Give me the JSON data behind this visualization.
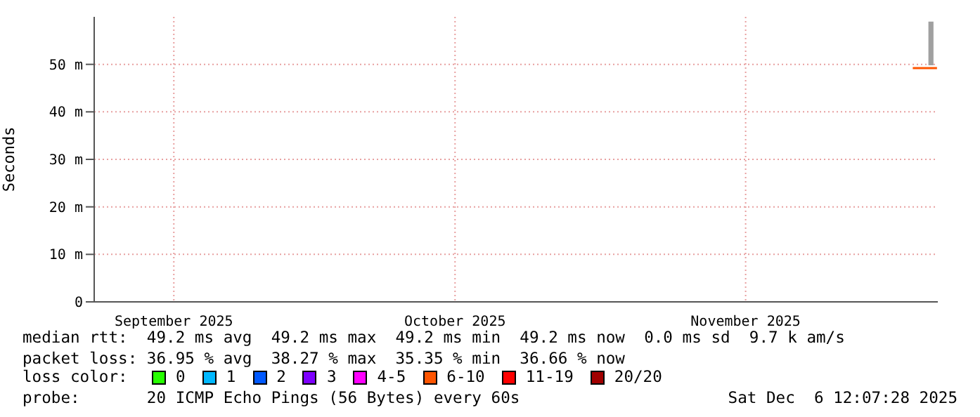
{
  "chart_data": {
    "type": "line",
    "ylabel": "Seconds",
    "xlim": [
      "2025-09-07T12:07",
      "2025-12-06T12:07"
    ],
    "xticks": [
      {
        "value": "2025-09-16",
        "label": "September 2025"
      },
      {
        "value": "2025-10-16",
        "label": "October 2025"
      },
      {
        "value": "2025-11-16",
        "label": "November 2025"
      }
    ],
    "ylim": [
      0,
      60
    ],
    "yticks": [
      {
        "value": 0,
        "label": "0"
      },
      {
        "value": 10,
        "label": "10 m"
      },
      {
        "value": 20,
        "label": "20 m"
      },
      {
        "value": 30,
        "label": "30 m"
      },
      {
        "value": 40,
        "label": "40 m"
      },
      {
        "value": 50,
        "label": "50 m"
      }
    ],
    "grid": true,
    "marker": "none",
    "series": [
      {
        "color": "#ff5500",
        "x": [
          "2025-12-03T20:00",
          "2025-12-05T12:00",
          "2025-12-06T01:00",
          "2025-12-06T10:00"
        ],
        "values": [
          49.2,
          49.2,
          49.2,
          49.2
        ],
        "lower": [
          null,
          49.8,
          49.8,
          null
        ],
        "upper": [
          null,
          59,
          59,
          null
        ]
      }
    ],
    "annotations": [
      "median rtt:  49.2 ms avg  49.2 ms max  49.2 ms min  49.2 ms now  0.0 ms sd  9.7 k am/s",
      "packet loss: 36.95 % avg  38.27 % max  35.35 % min  36.66 % now",
      "loss color:",
      "0",
      "1",
      "2",
      "3",
      "4-5",
      "6-10",
      "11-19",
      "20/20",
      "probe:       20 ICMP Echo Pings (56 Bytes) every 60s",
      "Sat Dec  6 12:07:28 2025"
    ]
  }
}
